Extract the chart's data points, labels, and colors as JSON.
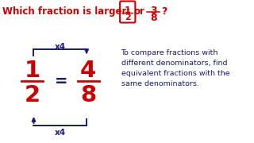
{
  "bg_color": "#ffffff",
  "red": "#cc0000",
  "dark_blue": "#1a1a6e",
  "title_text": "Which fraction is larger:",
  "or_text": "or",
  "question_mark": "?",
  "frac1_num": "1",
  "frac1_den": "2",
  "frac2_num": "3",
  "frac2_den": "8",
  "eq_sign": "=",
  "big_num1": "1",
  "big_den1": "2",
  "big_num2": "4",
  "big_den2": "8",
  "x4_top": "x4",
  "x4_bot": "x4",
  "desc_line1": "To compare fractions with",
  "desc_line2": "different denominators, find",
  "desc_line3": "equivalent fractions with the",
  "desc_line4": "same denominators."
}
